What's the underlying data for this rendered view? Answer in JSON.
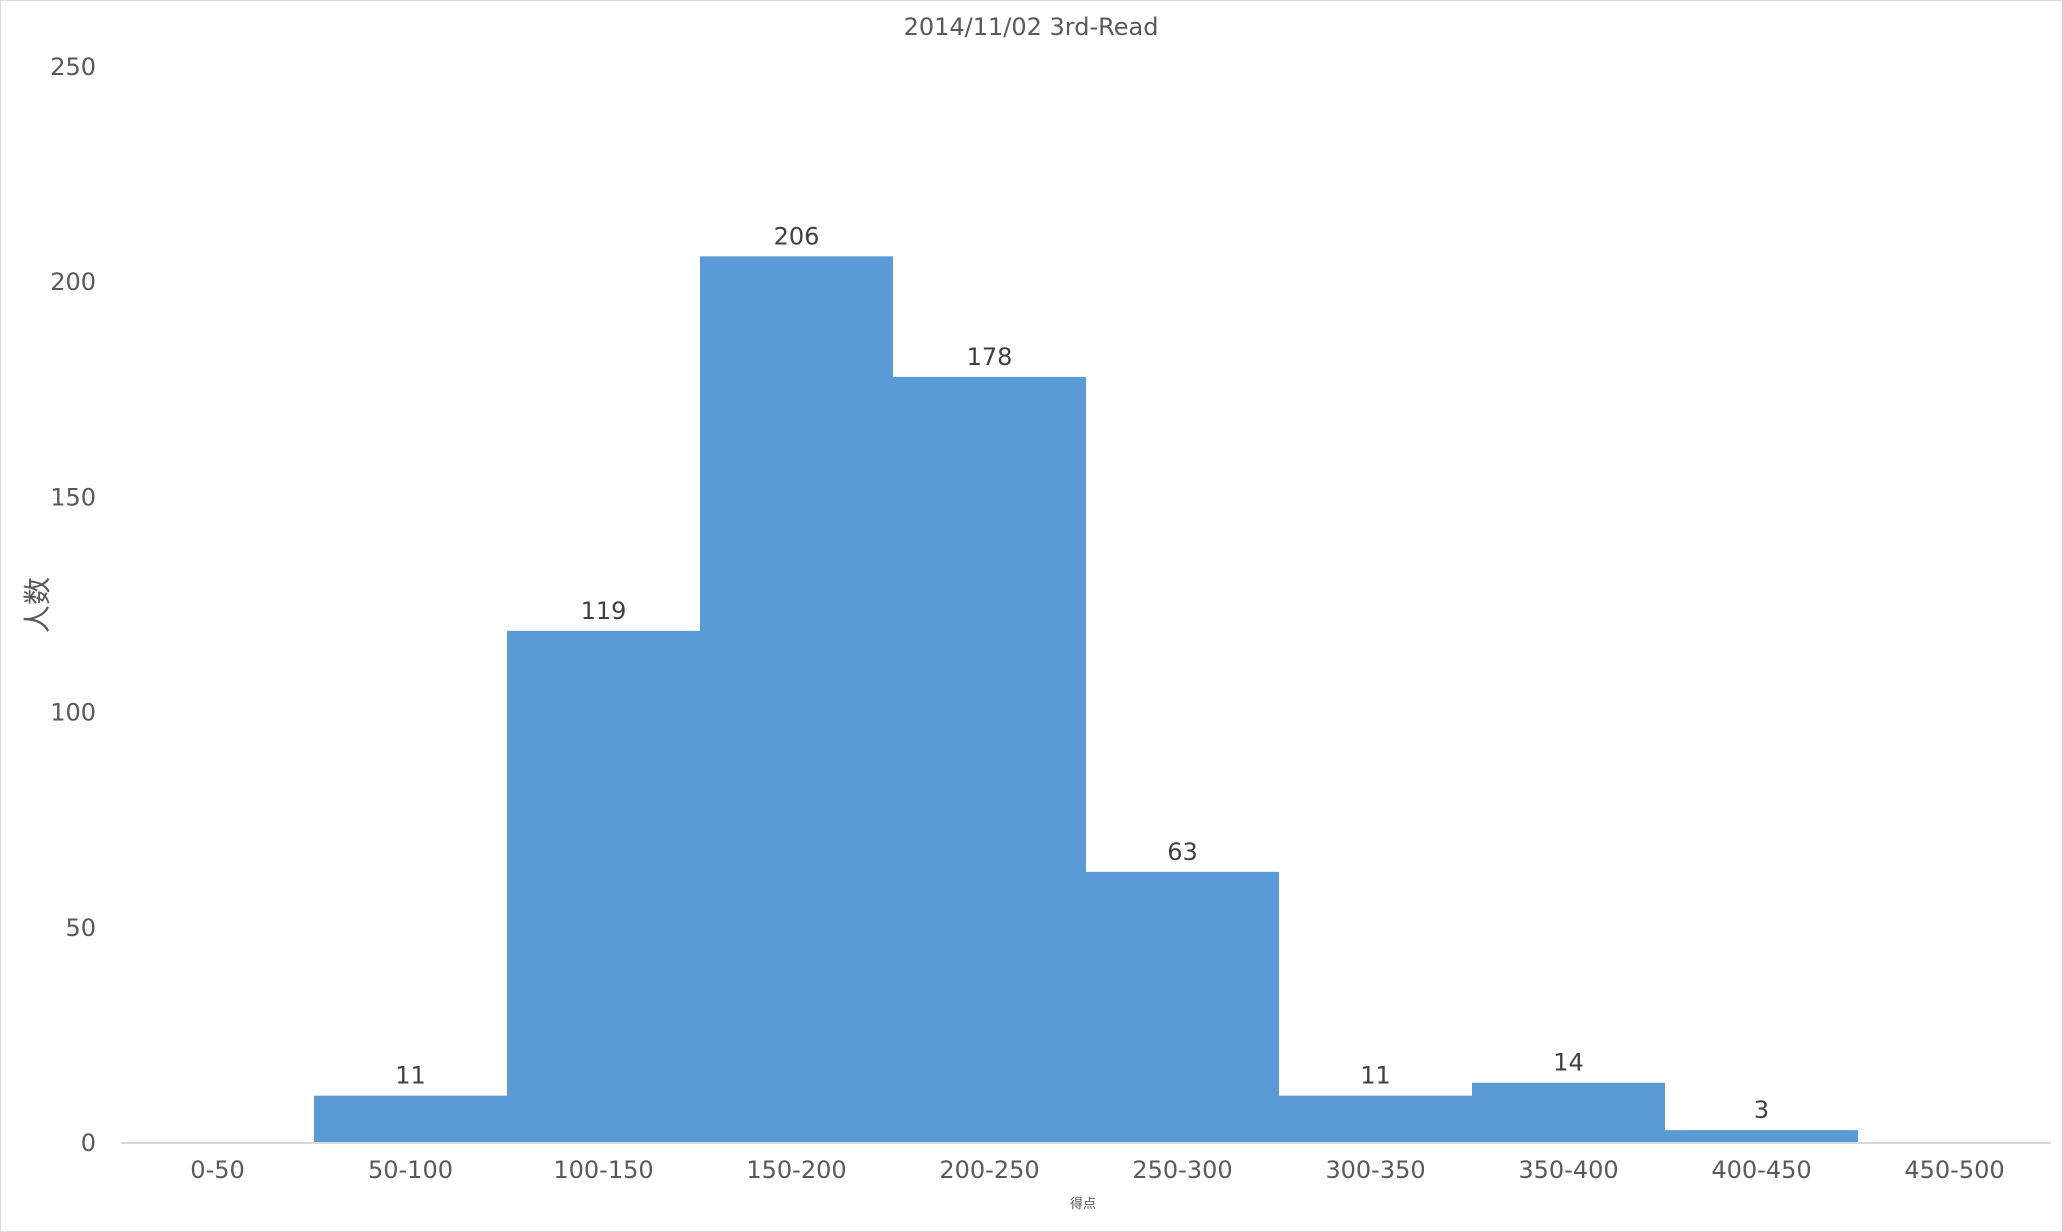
{
  "chart_data": {
    "type": "bar",
    "title": "2014/11/02 3rd-Read",
    "xlabel": "得点",
    "ylabel": "人数",
    "categories": [
      "0-50",
      "50-100",
      "100-150",
      "150-200",
      "200-250",
      "250-300",
      "300-350",
      "350-400",
      "400-450",
      "450-500"
    ],
    "values": [
      0,
      11,
      119,
      206,
      178,
      63,
      11,
      14,
      3,
      0
    ],
    "data_labels": [
      "",
      "11",
      "119",
      "206",
      "178",
      "63",
      "11",
      "14",
      "3",
      ""
    ],
    "yticks": [
      "0",
      "50",
      "100",
      "150",
      "200",
      "250"
    ],
    "ylim": [
      0,
      250
    ],
    "grid": false,
    "legend": "none",
    "bar_gap": 0,
    "colors": {
      "bar": "#5b9bd5",
      "axis": "#d9d9d9",
      "text": "#595959",
      "label": "#404040"
    }
  }
}
